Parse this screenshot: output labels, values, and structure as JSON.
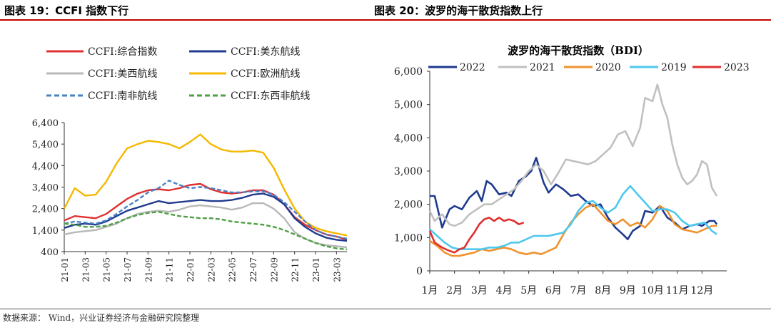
{
  "source": "数据来源： Wind，兴业证券经济与金融研究院整理",
  "chart_data": [
    {
      "type": "line",
      "figure_title": "图表 19：CCFI 指数下行",
      "title": "",
      "x": [
        "21-01",
        "21-02",
        "21-03",
        "21-04",
        "21-05",
        "21-06",
        "21-07",
        "21-08",
        "21-09",
        "21-10",
        "21-11",
        "21-12",
        "22-01",
        "22-02",
        "22-03",
        "22-04",
        "22-05",
        "22-06",
        "22-07",
        "22-08",
        "22-09",
        "22-10",
        "22-11",
        "22-12",
        "23-01",
        "23-02",
        "23-03",
        "23-04"
      ],
      "xtick_labels": [
        "21-01",
        "21-03",
        "21-05",
        "21-07",
        "21-09",
        "21-11",
        "22-01",
        "22-03",
        "22-05",
        "22-07",
        "22-09",
        "22-11",
        "23-01",
        "23-03"
      ],
      "ylim": [
        400,
        6400
      ],
      "yticks": [
        400,
        1400,
        2400,
        3400,
        4400,
        5400,
        6400
      ],
      "ytick_labels": [
        "400",
        "1,400",
        "2,400",
        "3,400",
        "4,400",
        "5,400",
        "6,400"
      ],
      "legend": "top",
      "series": [
        {
          "name": "CCFI:综合指数",
          "color": "#e03030",
          "dash": "solid",
          "values": [
            1850,
            2050,
            2000,
            1950,
            2150,
            2500,
            2850,
            3100,
            3250,
            3300,
            3250,
            3350,
            3500,
            3550,
            3300,
            3150,
            3100,
            3150,
            3250,
            3250,
            3050,
            2600,
            2000,
            1650,
            1400,
            1200,
            1100,
            950
          ]
        },
        {
          "name": "CCFI:美东航线",
          "color": "#1f3a8f",
          "dash": "solid",
          "values": [
            1500,
            1650,
            1700,
            1650,
            1800,
            2050,
            2300,
            2450,
            2600,
            2750,
            2650,
            2700,
            2750,
            2800,
            2750,
            2750,
            2800,
            2900,
            3050,
            3100,
            2950,
            2600,
            1950,
            1550,
            1250,
            1050,
            950,
            900
          ]
        },
        {
          "name": "CCFI:美西航线",
          "color": "#b8b8b8",
          "dash": "solid",
          "values": [
            1200,
            1300,
            1350,
            1400,
            1550,
            1700,
            1950,
            2150,
            2250,
            2300,
            2250,
            2350,
            2500,
            2550,
            2500,
            2450,
            2350,
            2450,
            2650,
            2650,
            2400,
            1950,
            1300,
            1000,
            800,
            700,
            650,
            600
          ]
        },
        {
          "name": "CCFI:欧洲航线",
          "color": "#f5b800",
          "dash": "solid",
          "values": [
            2400,
            3350,
            3000,
            3050,
            3650,
            4500,
            5200,
            5400,
            5550,
            5500,
            5400,
            5200,
            5500,
            5850,
            5400,
            5150,
            5050,
            5050,
            5100,
            5000,
            4300,
            3300,
            2400,
            1800,
            1500,
            1350,
            1250,
            1150
          ]
        },
        {
          "name": "CCFI:南非航线",
          "color": "#4a82c8",
          "dash": "dashed",
          "values": [
            1700,
            1800,
            1750,
            1700,
            1850,
            2150,
            2500,
            2800,
            3150,
            3350,
            3700,
            3500,
            3350,
            3400,
            3350,
            3250,
            3150,
            3150,
            3200,
            3200,
            3050,
            2700,
            2250,
            1800,
            1400,
            1200,
            1100,
            1000
          ]
        },
        {
          "name": "CCFI:东西非航线",
          "color": "#4ea044",
          "dash": "dashed",
          "values": [
            1700,
            1650,
            1550,
            1550,
            1600,
            1750,
            1950,
            2100,
            2200,
            2250,
            2150,
            2050,
            2000,
            1950,
            1950,
            1900,
            1800,
            1750,
            1700,
            1650,
            1550,
            1400,
            1200,
            1000,
            800,
            650,
            550,
            500
          ]
        }
      ]
    },
    {
      "type": "line",
      "figure_title": "图表 20：波罗的海干散货指数上行",
      "title": "波罗的海干散货指数（BDI）",
      "x": [
        1,
        2,
        3,
        4,
        5,
        6,
        7,
        8,
        9,
        10,
        11,
        12,
        13
      ],
      "xtick_labels": [
        "1月",
        "2月",
        "3月",
        "4月",
        "5月",
        "6月",
        "7月",
        "8月",
        "9月",
        "10月",
        "11月",
        "12月"
      ],
      "ylim": [
        0,
        6000
      ],
      "yticks": [
        0,
        1000,
        2000,
        3000,
        4000,
        5000,
        6000
      ],
      "ytick_labels": [
        "0",
        "1,000",
        "2,000",
        "3,000",
        "4,000",
        "5,000",
        "6,000"
      ],
      "legend": "top",
      "series": [
        {
          "name": "2022",
          "color": "#1f3a8f",
          "x": [
            1,
            1.2,
            1.5,
            1.8,
            2,
            2.3,
            2.6,
            2.9,
            3.1,
            3.3,
            3.5,
            3.8,
            4.1,
            4.3,
            4.6,
            4.9,
            5.1,
            5.3,
            5.6,
            5.8,
            6.1,
            6.4,
            6.7,
            7,
            7.3,
            7.6,
            7.9,
            8.2,
            8.5,
            8.8,
            9,
            9.2,
            9.5,
            9.7,
            10,
            10.3,
            10.6,
            10.9,
            11.2,
            11.5,
            11.8,
            12,
            12.3,
            12.5,
            12.6
          ],
          "values": [
            2250,
            2250,
            1300,
            1850,
            1950,
            1850,
            2200,
            2400,
            2100,
            2700,
            2600,
            2300,
            2350,
            2250,
            2700,
            2850,
            3000,
            3400,
            2650,
            2350,
            2600,
            2450,
            2250,
            2300,
            2100,
            1950,
            2000,
            1600,
            1300,
            1100,
            950,
            1200,
            1350,
            1800,
            1750,
            1950,
            1600,
            1450,
            1250,
            1350,
            1400,
            1350,
            1500,
            1500,
            1400
          ]
        },
        {
          "name": "2021",
          "color": "#c0c0c0",
          "x": [
            1,
            1.2,
            1.5,
            1.8,
            2,
            2.3,
            2.6,
            2.9,
            3.2,
            3.5,
            3.8,
            4.1,
            4.4,
            4.7,
            5,
            5.3,
            5.6,
            5.9,
            6.2,
            6.5,
            6.8,
            7.1,
            7.4,
            7.7,
            8,
            8.3,
            8.6,
            8.9,
            9.2,
            9.5,
            9.7,
            10,
            10.2,
            10.4,
            10.6,
            10.8,
            11,
            11.2,
            11.4,
            11.6,
            11.8,
            12,
            12.2,
            12.4,
            12.6
          ],
          "values": [
            1800,
            1500,
            1700,
            1400,
            1350,
            1450,
            1700,
            1850,
            2000,
            2000,
            2150,
            2300,
            2450,
            2700,
            3000,
            3200,
            3000,
            2600,
            2950,
            3350,
            3300,
            3250,
            3200,
            3300,
            3500,
            3700,
            4100,
            4200,
            3750,
            4300,
            5200,
            5100,
            5600,
            5000,
            4600,
            3800,
            3200,
            2800,
            2600,
            2700,
            2900,
            3300,
            3200,
            2500,
            2250
          ]
        },
        {
          "name": "2020",
          "color": "#f0922e",
          "x": [
            1,
            1.3,
            1.6,
            1.9,
            2.2,
            2.5,
            2.8,
            3.1,
            3.4,
            3.7,
            4,
            4.3,
            4.6,
            4.9,
            5.2,
            5.5,
            5.8,
            6.1,
            6.4,
            6.7,
            7,
            7.3,
            7.6,
            7.9,
            8.2,
            8.5,
            8.8,
            9.1,
            9.4,
            9.7,
            10,
            10.3,
            10.6,
            10.9,
            11.2,
            11.5,
            11.8,
            12.1,
            12.4,
            12.6
          ],
          "values": [
            900,
            750,
            550,
            450,
            450,
            500,
            550,
            650,
            600,
            650,
            700,
            650,
            550,
            500,
            550,
            500,
            600,
            700,
            1100,
            1450,
            1700,
            1900,
            2000,
            1750,
            1500,
            1400,
            1550,
            1350,
            1450,
            1300,
            1550,
            1950,
            1800,
            1400,
            1250,
            1200,
            1150,
            1250,
            1350,
            1350
          ]
        },
        {
          "name": "2019",
          "color": "#4ec8ee",
          "x": [
            1,
            1.3,
            1.6,
            1.9,
            2.2,
            2.5,
            2.8,
            3.1,
            3.4,
            3.7,
            4,
            4.3,
            4.6,
            4.9,
            5.2,
            5.5,
            5.8,
            6.1,
            6.4,
            6.7,
            7,
            7.3,
            7.6,
            7.9,
            8.2,
            8.5,
            8.8,
            9.1,
            9.4,
            9.7,
            10,
            10.3,
            10.6,
            10.9,
            11.2,
            11.5,
            11.8,
            12.1,
            12.4,
            12.6
          ],
          "values": [
            1250,
            1050,
            850,
            700,
            650,
            650,
            650,
            650,
            700,
            700,
            750,
            850,
            850,
            950,
            1050,
            1050,
            1050,
            1100,
            1150,
            1400,
            1800,
            2050,
            2100,
            1900,
            1750,
            1900,
            2300,
            2550,
            2300,
            2050,
            1800,
            1850,
            1850,
            1750,
            1500,
            1350,
            1400,
            1450,
            1200,
            1100
          ]
        },
        {
          "name": "2023",
          "color": "#e03030",
          "x": [
            1,
            1.2,
            1.5,
            1.8,
            2,
            2.2,
            2.4,
            2.6,
            2.8,
            3,
            3.2,
            3.4,
            3.6,
            3.8,
            4,
            4.2,
            4.4,
            4.6,
            4.8
          ],
          "values": [
            1200,
            850,
            700,
            600,
            550,
            650,
            700,
            950,
            1150,
            1400,
            1550,
            1600,
            1500,
            1600,
            1500,
            1550,
            1500,
            1400,
            1450
          ]
        }
      ]
    }
  ]
}
